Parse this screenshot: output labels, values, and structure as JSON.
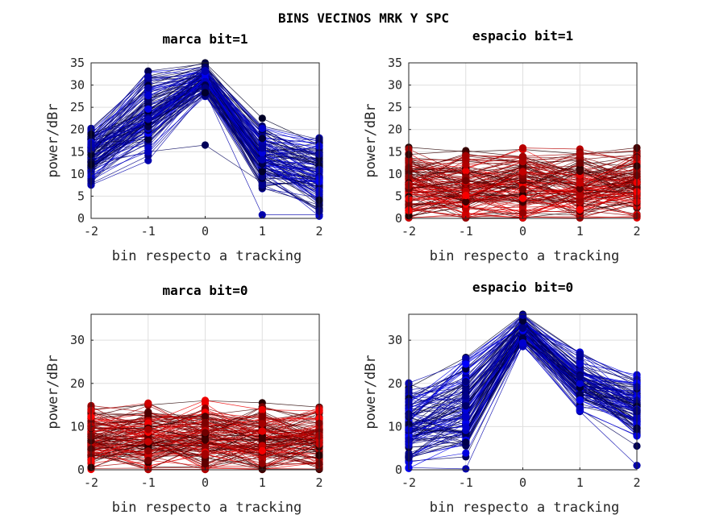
{
  "figure_title": "BINS VECINOS MRK Y SPC",
  "colors": {
    "blue": "#0000ff",
    "red": "#ff0000",
    "dark": "#000000",
    "grid": "#dfdfdf",
    "axis": "#262626"
  },
  "chart_data": [
    {
      "type": "line",
      "title": "marca bit=1",
      "xlabel": "bin respecto a tracking",
      "ylabel": "power/dBr",
      "x": [
        -2,
        -1,
        0,
        1,
        2
      ],
      "xticks": [
        "-2",
        "-1",
        "0",
        "1",
        "2"
      ],
      "yticks": [
        "0",
        "5",
        "10",
        "15",
        "20",
        "25",
        "30",
        "35"
      ],
      "ylim": [
        0,
        35
      ],
      "grid": true,
      "color_scheme": "blue",
      "num_traces": 120,
      "seed": 11,
      "mean_profile": [
        14.5,
        23.5,
        31.5,
        13.5,
        10.0
      ],
      "spread": [
        6.0,
        9.0,
        3.5,
        7.0,
        8.0
      ],
      "series": [
        {
          "values": [
            20.0,
            32.0,
            35.0,
            22.5,
            16.5
          ]
        },
        {
          "values": [
            7.5,
            13.0,
            28.5,
            0.8,
            0.8
          ]
        },
        {
          "values": [
            12.0,
            15.0,
            16.5,
            8.0,
            14.0
          ]
        },
        {
          "values": [
            18.0,
            31.0,
            33.0,
            18.0,
            17.0
          ]
        },
        {
          "values": [
            10.0,
            17.0,
            29.0,
            10.0,
            2.0
          ]
        }
      ]
    },
    {
      "type": "line",
      "title": "espacio bit=1",
      "xlabel": "bin respecto a tracking",
      "ylabel": "power/dBr",
      "x": [
        -2,
        -1,
        0,
        1,
        2
      ],
      "xticks": [
        "-2",
        "-1",
        "0",
        "1",
        "2"
      ],
      "yticks": [
        "0",
        "5",
        "10",
        "15",
        "20",
        "25",
        "30",
        "35"
      ],
      "ylim": [
        0,
        35
      ],
      "grid": true,
      "color_scheme": "red",
      "num_traces": 130,
      "seed": 23,
      "mean_profile": [
        7.5,
        7.0,
        7.5,
        7.0,
        7.5
      ],
      "spread": [
        7.5,
        7.5,
        7.5,
        7.5,
        7.5
      ],
      "series": [
        {
          "values": [
            16.0,
            15.0,
            15.5,
            14.5,
            15.0
          ]
        },
        {
          "values": [
            0.2,
            0.5,
            0.3,
            0.4,
            0.2
          ]
        },
        {
          "values": [
            11.0,
            8.0,
            12.0,
            9.0,
            13.0
          ]
        }
      ]
    },
    {
      "type": "line",
      "title": "marca bit=0",
      "xlabel": "bin respecto a tracking",
      "ylabel": "power/dBr",
      "x": [
        -2,
        -1,
        0,
        1,
        2
      ],
      "xticks": [
        "-2",
        "-1",
        "0",
        "1",
        "2"
      ],
      "yticks": [
        "0",
        "10",
        "20",
        "30"
      ],
      "ylim": [
        0,
        36
      ],
      "grid": true,
      "color_scheme": "red",
      "num_traces": 130,
      "seed": 37,
      "mean_profile": [
        7.0,
        7.5,
        7.5,
        7.0,
        7.0
      ],
      "spread": [
        7.0,
        7.5,
        8.0,
        7.5,
        7.0
      ],
      "series": [
        {
          "values": [
            14.0,
            15.0,
            16.0,
            15.5,
            14.5
          ]
        },
        {
          "values": [
            0.3,
            0.4,
            0.5,
            0.3,
            0.2
          ]
        },
        {
          "values": [
            10.0,
            12.0,
            9.0,
            11.0,
            8.0
          ]
        }
      ]
    },
    {
      "type": "line",
      "title": "espacio bit=0",
      "xlabel": "bin respecto a tracking",
      "ylabel": "power/dBr",
      "x": [
        -2,
        -1,
        0,
        1,
        2
      ],
      "xticks": [
        "-2",
        "-1",
        "0",
        "1",
        "2"
      ],
      "yticks": [
        "0",
        "10",
        "20",
        "30"
      ],
      "ylim": [
        0,
        36
      ],
      "grid": true,
      "color_scheme": "blue",
      "num_traces": 120,
      "seed": 53,
      "mean_profile": [
        10.0,
        14.0,
        32.5,
        20.5,
        14.5
      ],
      "spread": [
        9.0,
        11.0,
        3.5,
        6.0,
        7.0
      ],
      "series": [
        {
          "values": [
            19.0,
            26.0,
            36.0,
            27.0,
            20.5
          ]
        },
        {
          "values": [
            0.5,
            0.2,
            29.0,
            13.5,
            1.0
          ]
        },
        {
          "values": [
            2.0,
            3.0,
            30.0,
            14.0,
            5.5
          ]
        }
      ]
    }
  ]
}
